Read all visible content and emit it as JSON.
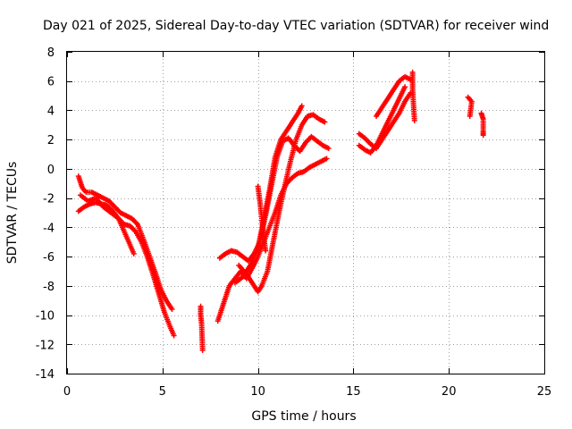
{
  "chart_data": {
    "type": "scatter",
    "title": "Day 021 of 2025, Sidereal Day-to-day VTEC variation (SDTVAR) for receiver wind",
    "xlabel": "GPS time / hours",
    "ylabel": "SDTVAR / TECUs",
    "xlim": [
      0,
      25
    ],
    "ylim": [
      -14,
      8
    ],
    "xticks": [
      0,
      5,
      10,
      15,
      20,
      25
    ],
    "yticks": [
      -14,
      -12,
      -10,
      -8,
      -6,
      -4,
      -2,
      0,
      2,
      4,
      6,
      8
    ],
    "grid": true,
    "marker": "plus",
    "color": "#ff0000",
    "series": [
      {
        "x": [
          0.6,
          0.8,
          1.0,
          1.3,
          1.6,
          1.9,
          2.2,
          2.5,
          2.8,
          3.1,
          3.4,
          3.7,
          4.0,
          4.3,
          4.6,
          4.9,
          5.2,
          5.5
        ],
        "y": [
          -0.5,
          -1.3,
          -1.6,
          -1.6,
          -1.8,
          -2.0,
          -2.2,
          -2.6,
          -3.0,
          -3.2,
          -3.4,
          -3.8,
          -4.8,
          -5.9,
          -7.0,
          -8.2,
          -9.0,
          -9.6
        ]
      },
      {
        "x": [
          0.6,
          0.9,
          1.2,
          1.5,
          1.8,
          2.1,
          2.4,
          2.7,
          3.0,
          3.3,
          3.6,
          3.9,
          4.2,
          4.5,
          4.8,
          5.1,
          5.4,
          5.6
        ],
        "y": [
          -2.9,
          -2.6,
          -2.4,
          -2.3,
          -2.4,
          -2.5,
          -2.9,
          -3.4,
          -3.8,
          -3.9,
          -4.3,
          -5.0,
          -6.0,
          -7.2,
          -8.5,
          -9.8,
          -10.8,
          -11.4
        ]
      },
      {
        "x": [
          0.7,
          1.1,
          1.5,
          1.9,
          2.3,
          2.7,
          3.1,
          3.5
        ],
        "y": [
          -1.8,
          -2.2,
          -2.0,
          -2.6,
          -3.0,
          -3.4,
          -4.6,
          -5.8
        ]
      },
      {
        "x": [
          7.0,
          7.0,
          7.05,
          7.1
        ],
        "y": [
          -9.4,
          -10.0,
          -10.6,
          -12.4
        ]
      },
      {
        "x": [
          7.9,
          8.2,
          8.5,
          8.8,
          9.1,
          9.4,
          9.7,
          10.0,
          10.3,
          10.6,
          10.9,
          11.2,
          11.5,
          11.8,
          12.1,
          12.4,
          12.7,
          13.0,
          13.3,
          13.6
        ],
        "y": [
          -10.4,
          -9.2,
          -8.0,
          -7.5,
          -7.0,
          -7.5,
          -6.8,
          -6.0,
          -5.0,
          -4.0,
          -3.0,
          -1.8,
          -1.0,
          -0.6,
          -0.3,
          -0.2,
          0.1,
          0.3,
          0.5,
          0.7
        ]
      },
      {
        "x": [
          8.0,
          8.3,
          8.6,
          8.9,
          9.2,
          9.5,
          9.8,
          10.1,
          10.4,
          10.7,
          11.0,
          11.3,
          11.6,
          11.9,
          12.2,
          12.5,
          12.8,
          13.1,
          13.4,
          13.7
        ],
        "y": [
          -6.1,
          -5.8,
          -5.6,
          -5.7,
          -6.0,
          -6.3,
          -5.8,
          -5.0,
          -3.2,
          -1.2,
          0.8,
          1.9,
          2.1,
          1.6,
          1.2,
          1.8,
          2.2,
          1.9,
          1.6,
          1.4
        ]
      },
      {
        "x": [
          9.0,
          9.4,
          9.8,
          10.0,
          10.2,
          10.5,
          10.8,
          11.1,
          11.4,
          11.7,
          12.0,
          12.3,
          12.6,
          12.9,
          13.2,
          13.5
        ],
        "y": [
          -6.6,
          -7.2,
          -8.0,
          -8.4,
          -8.0,
          -7.0,
          -5.0,
          -3.0,
          -1.2,
          0.5,
          2.0,
          3.0,
          3.6,
          3.7,
          3.4,
          3.2
        ]
      },
      {
        "x": [
          8.8,
          9.2,
          9.6,
          10.0,
          10.3,
          10.6,
          10.9,
          11.2,
          11.5,
          11.8,
          12.1,
          12.3
        ],
        "y": [
          -7.8,
          -7.4,
          -6.6,
          -5.4,
          -3.5,
          -1.5,
          0.8,
          2.0,
          2.6,
          3.2,
          3.8,
          4.3
        ]
      },
      {
        "x": [
          10.0,
          10.1,
          10.2,
          10.3,
          10.4
        ],
        "y": [
          -1.2,
          -2.2,
          -3.4,
          -4.6,
          -5.6
        ]
      },
      {
        "x": [
          15.3,
          15.6,
          15.9,
          16.2,
          16.5,
          16.8,
          17.1,
          17.4,
          17.7,
          18.0
        ],
        "y": [
          2.4,
          2.1,
          1.7,
          1.4,
          2.0,
          2.6,
          3.2,
          3.8,
          4.6,
          5.2
        ]
      },
      {
        "x": [
          15.3,
          15.6,
          15.9,
          16.2,
          16.5,
          16.8,
          17.1,
          17.4,
          17.7
        ],
        "y": [
          1.6,
          1.3,
          1.1,
          1.6,
          2.4,
          3.2,
          4.0,
          4.8,
          5.6
        ]
      },
      {
        "x": [
          16.2,
          16.5,
          16.8,
          17.1,
          17.4,
          17.7,
          18.0
        ],
        "y": [
          3.6,
          4.2,
          4.8,
          5.4,
          6.0,
          6.3,
          6.1
        ]
      },
      {
        "x": [
          18.1,
          18.1,
          18.2
        ],
        "y": [
          6.6,
          5.5,
          3.3
        ]
      },
      {
        "x": [
          21.0,
          21.2,
          21.1
        ],
        "y": [
          4.9,
          4.6,
          3.6
        ]
      },
      {
        "x": [
          21.7,
          21.8,
          21.8,
          21.8
        ],
        "y": [
          3.8,
          3.4,
          2.6,
          2.3
        ]
      }
    ]
  }
}
